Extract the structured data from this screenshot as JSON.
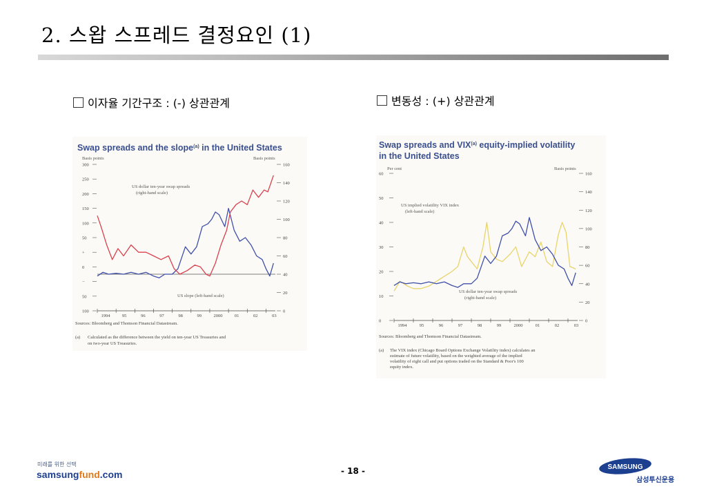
{
  "slide": {
    "title": "2. 스왑 스프레드 결정요인 (1)",
    "left_heading": "이자율 기간구조 : (-) 상관관계",
    "right_heading": "변동성 : (+) 상관관계",
    "page": "- 18 -"
  },
  "footer": {
    "tagline": "미래를 위한 선택",
    "url_part1": "samsung",
    "url_part2": "fund",
    "url_part3": ".com",
    "logo_text": "SAMSUNG",
    "company": "삼성투신운용"
  },
  "colors": {
    "red_series": "#d9404d",
    "blue_series": "#3f4fa8",
    "yellow_series": "#e8d46a",
    "title_blue": "#3a4f8e",
    "accent_orange": "#e07a1a"
  },
  "chart_data": [
    {
      "type": "line",
      "title_part1": "Swap spreads and the slope",
      "title_sup": "(a)",
      "title_part2": " in the United States",
      "left_unit": "Basis points",
      "right_unit": "Basis points",
      "x_ticks": [
        "1994",
        "95",
        "96",
        "97",
        "98",
        "99",
        "2000",
        "01",
        "02",
        "03"
      ],
      "left_axis": {
        "ticks": [
          "300",
          "250",
          "200",
          "150",
          "100",
          "50",
          "+",
          "0",
          "−",
          "50",
          "100"
        ],
        "ylim": [
          -100,
          300
        ]
      },
      "right_axis": {
        "ticks": [
          "160",
          "140",
          "120",
          "100",
          "80",
          "60",
          "40",
          "20",
          "0"
        ],
        "ylim": [
          0,
          160
        ]
      },
      "series": [
        {
          "name": "US dollar ten-year swap spreads",
          "scale_note": "(right-hand scale)",
          "axis": "right",
          "x": [
            1994.0,
            1994.3,
            1994.6,
            1995.0,
            1995.4,
            1995.8,
            1996.2,
            1996.6,
            1997.0,
            1997.3,
            1997.6,
            1998.0,
            1998.3,
            1998.5,
            1998.7,
            1999.0,
            1999.3,
            1999.6,
            1999.9,
            2000.1,
            2000.3,
            2000.5,
            2000.8,
            2001.0,
            2001.3,
            2001.6,
            2001.9,
            2002.2,
            2002.5,
            2002.8,
            2003.0,
            2003.2,
            2003.4
          ],
          "values": [
            38,
            42,
            40,
            41,
            40,
            42,
            40,
            42,
            38,
            36,
            40,
            40,
            46,
            58,
            70,
            62,
            70,
            92,
            95,
            100,
            108,
            105,
            92,
            112,
            88,
            76,
            80,
            72,
            60,
            56,
            46,
            38,
            52
          ]
        },
        {
          "name": "US slope",
          "scale_note": "(left-hand scale)",
          "axis": "left",
          "x": [
            1994.0,
            1994.2,
            1994.5,
            1994.8,
            1995.1,
            1995.4,
            1995.8,
            1996.2,
            1996.6,
            1997.0,
            1997.4,
            1997.8,
            1998.1,
            1998.4,
            1998.8,
            1999.2,
            1999.5,
            1999.8,
            2000.0,
            2000.3,
            2000.6,
            2000.9,
            2001.1,
            2001.4,
            2001.7,
            2002.0,
            2002.3,
            2002.6,
            2002.9,
            2003.1,
            2003.4
          ],
          "values": [
            160,
            130,
            80,
            40,
            70,
            50,
            80,
            60,
            60,
            50,
            40,
            50,
            15,
            0,
            10,
            25,
            20,
            0,
            -5,
            30,
            80,
            120,
            170,
            190,
            200,
            190,
            230,
            210,
            230,
            225,
            270
          ]
        }
      ],
      "sources": "Sources:  Bloomberg and Thomson Financial Datastream.",
      "footnote_marker": "(a)",
      "footnote_line1": "Calculated as the difference between the yield on ten-year US Treasuries and",
      "footnote_line2": "on two-year US Treasuries."
    },
    {
      "type": "line",
      "title_part1": "Swap spreads and VIX",
      "title_sup": "(a)",
      "title_part2": " equity-implied volatility",
      "title_line2": "in the United States",
      "left_unit": "Per cent",
      "right_unit": "Basis points",
      "x_ticks": [
        "1994",
        "95",
        "96",
        "97",
        "98",
        "99",
        "2000",
        "01",
        "02",
        "03"
      ],
      "left_axis": {
        "ticks": [
          "60",
          "50",
          "40",
          "30",
          "20",
          "10",
          "0"
        ],
        "ylim": [
          0,
          60
        ]
      },
      "right_axis": {
        "ticks": [
          "160",
          "140",
          "120",
          "100",
          "80",
          "60",
          "40",
          "20",
          "0"
        ],
        "ylim": [
          0,
          160
        ]
      },
      "series": [
        {
          "name": "US implied volatility VIX index",
          "scale_note": "(left-hand scale)",
          "axis": "left",
          "x": [
            1994.0,
            1994.3,
            1994.7,
            1995.0,
            1995.4,
            1995.8,
            1996.2,
            1996.6,
            1997.0,
            1997.3,
            1997.6,
            1997.8,
            1998.0,
            1998.3,
            1998.6,
            1998.8,
            1999.0,
            1999.3,
            1999.6,
            2000.0,
            2000.3,
            2000.6,
            2001.0,
            2001.3,
            2001.6,
            2001.9,
            2002.2,
            2002.5,
            2002.7,
            2002.9,
            2003.1,
            2003.4
          ],
          "values": [
            12,
            16,
            14,
            13,
            13,
            14,
            16,
            18,
            20,
            22,
            30,
            26,
            24,
            21,
            30,
            40,
            28,
            25,
            24,
            27,
            30,
            22,
            28,
            26,
            32,
            24,
            22,
            35,
            40,
            36,
            22,
            21
          ]
        },
        {
          "name": "US dollar ten-year swap spreads",
          "scale_note": "(right-hand scale)",
          "axis": "right",
          "x": [
            1994.0,
            1994.3,
            1994.6,
            1995.0,
            1995.4,
            1995.8,
            1996.2,
            1996.6,
            1997.0,
            1997.3,
            1997.6,
            1998.0,
            1998.3,
            1998.5,
            1998.7,
            1999.0,
            1999.3,
            1999.6,
            1999.9,
            2000.1,
            2000.3,
            2000.5,
            2000.8,
            2001.0,
            2001.3,
            2001.6,
            2001.9,
            2002.2,
            2002.5,
            2002.8,
            2003.0,
            2003.2,
            2003.4
          ],
          "values": [
            38,
            42,
            40,
            41,
            40,
            42,
            40,
            42,
            38,
            36,
            40,
            40,
            46,
            58,
            70,
            62,
            70,
            92,
            95,
            100,
            108,
            105,
            92,
            112,
            88,
            76,
            80,
            72,
            60,
            56,
            46,
            38,
            52
          ]
        }
      ],
      "sources": "Sources:  Bloomberg and Thomson Financial Datastream.",
      "footnote_marker": "(a)",
      "footnote_line1": "The VIX index (Chicago Board Options Exchange Volatility index) calculates an",
      "footnote_line2": "estimate of future volatility, based on the weighted average of the implied",
      "footnote_line3": "volatility of eight call and put options traded on the Standard & Poor's 100",
      "footnote_line4": "equity index."
    }
  ]
}
